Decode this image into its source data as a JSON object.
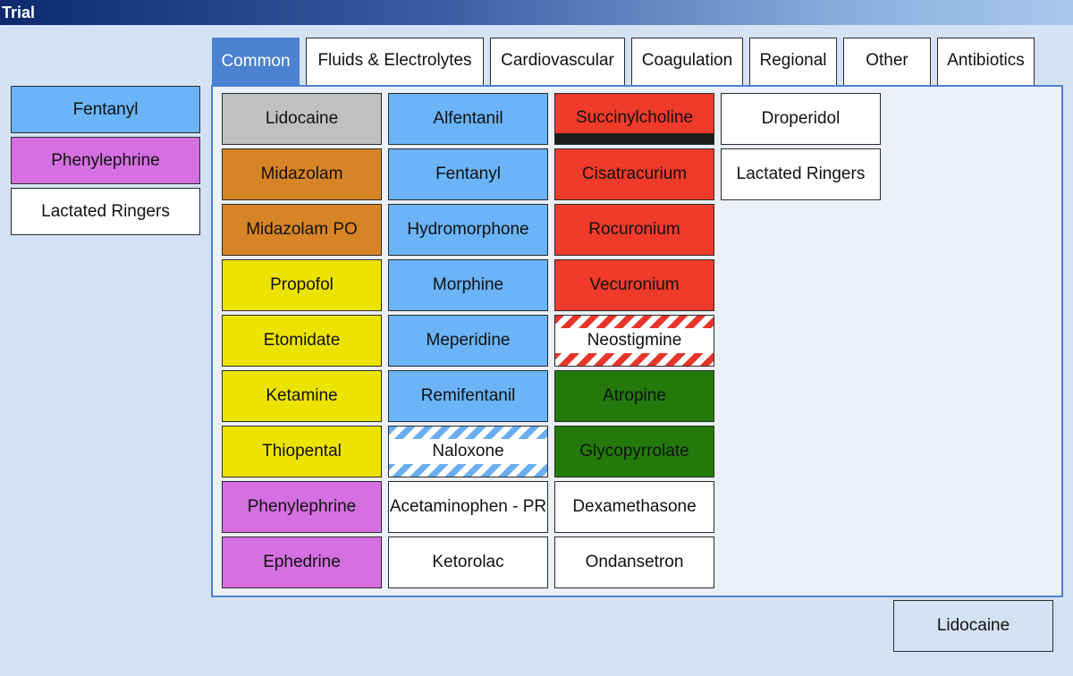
{
  "window": {
    "title": "Trial"
  },
  "tabs": [
    {
      "label": "Common"
    },
    {
      "label": "Fluids & Electrolytes"
    },
    {
      "label": "Cardiovascular"
    },
    {
      "label": "Coagulation"
    },
    {
      "label": "Regional"
    },
    {
      "label": "Other"
    },
    {
      "label": "Antibiotics"
    }
  ],
  "recent": [
    {
      "label": "Fentanyl",
      "color": "#6ab4f7"
    },
    {
      "label": "Phenylephrine",
      "color": "#d66fe1"
    },
    {
      "label": "Lactated Ringers",
      "color": "#ffffff"
    }
  ],
  "grid": [
    [
      {
        "label": "Lidocaine",
        "color": "#c0c0c0"
      },
      {
        "label": "Midazolam",
        "color": "#d78426"
      },
      {
        "label": "Midazolam PO",
        "color": "#d78426"
      },
      {
        "label": "Propofol",
        "color": "#ede300"
      },
      {
        "label": "Etomidate",
        "color": "#ede300"
      },
      {
        "label": "Ketamine",
        "color": "#ede300"
      },
      {
        "label": "Thiopental",
        "color": "#ede300"
      },
      {
        "label": "Phenylephrine",
        "color": "#d66fe1"
      },
      {
        "label": "Ephedrine",
        "color": "#d66fe1"
      }
    ],
    [
      {
        "label": "Alfentanil",
        "color": "#6ab4f7"
      },
      {
        "label": "Fentanyl",
        "color": "#6ab4f7"
      },
      {
        "label": "Hydromorphone",
        "color": "#6ab4f7"
      },
      {
        "label": "Morphine",
        "color": "#6ab4f7"
      },
      {
        "label": "Meperidine",
        "color": "#6ab4f7"
      },
      {
        "label": "Remifentanil",
        "color": "#6ab4f7"
      },
      {
        "label": "Naloxone",
        "color": "#ffffff",
        "pattern": "hatch-blue"
      },
      {
        "label": "Acetaminophen - PR",
        "color": "#ffffff"
      },
      {
        "label": "Ketorolac",
        "color": "#ffffff"
      }
    ],
    [
      {
        "label": "Succinylcholine",
        "color": "#f03b2b",
        "pattern": "black-strip"
      },
      {
        "label": "Cisatracurium",
        "color": "#f03b2b"
      },
      {
        "label": "Rocuronium",
        "color": "#f03b2b"
      },
      {
        "label": "Vecuronium",
        "color": "#f03b2b"
      },
      {
        "label": "Neostigmine",
        "color": "#ffffff",
        "pattern": "hatch-red"
      },
      {
        "label": "Atropine",
        "color": "#237a0a"
      },
      {
        "label": "Glycopyrrolate",
        "color": "#237a0a"
      },
      {
        "label": "Dexamethasone",
        "color": "#ffffff"
      },
      {
        "label": "Ondansetron",
        "color": "#ffffff"
      }
    ],
    [
      {
        "label": "Droperidol",
        "color": "#ffffff"
      },
      {
        "label": "Lactated Ringers",
        "color": "#ffffff"
      }
    ]
  ],
  "bottom_button": {
    "label": "Lidocaine",
    "color": "#ffffff"
  }
}
